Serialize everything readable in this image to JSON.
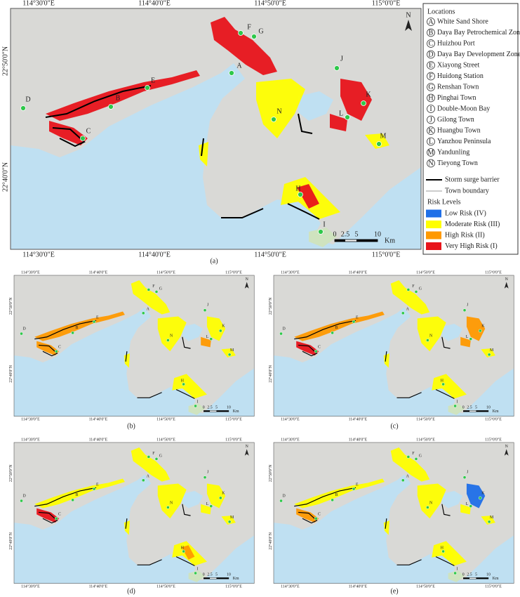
{
  "map": {
    "lon_labels": [
      "114°30'0\"E",
      "114°40'0\"E",
      "114°50'0\"E",
      "115°0'0\"E"
    ],
    "lat_labels": [
      "22°50'0\"N",
      "22°40'0\"N"
    ],
    "north": "N",
    "scale_labels": [
      "0",
      "2.5",
      "5",
      "10"
    ],
    "scale_unit": "Km"
  },
  "legend": {
    "locations_title": "Locations",
    "locations": [
      {
        "letter": "A",
        "name": "White Sand Shore"
      },
      {
        "letter": "B",
        "name": "Daya Bay Petrochemical Zone"
      },
      {
        "letter": "C",
        "name": "Huizhou Port"
      },
      {
        "letter": "D",
        "name": "Daya Bay Development Zone"
      },
      {
        "letter": "E",
        "name": "Xiayong Street"
      },
      {
        "letter": "F",
        "name": "Huidong Station"
      },
      {
        "letter": "G",
        "name": "Renshan Town"
      },
      {
        "letter": "H",
        "name": "Pinghai Town"
      },
      {
        "letter": "I",
        "name": "Double-Moon Bay"
      },
      {
        "letter": "J",
        "name": "Gilong Town"
      },
      {
        "letter": "K",
        "name": "Huangbu Town"
      },
      {
        "letter": "L",
        "name": "Yanzhou Peninsula"
      },
      {
        "letter": "M",
        "name": "Yandunling"
      },
      {
        "letter": "N",
        "name": "Tieyong Town"
      }
    ],
    "lines": [
      {
        "label": "Storm surge barrier",
        "color": "#000000"
      },
      {
        "label": "Town boundary",
        "color": "#9a9a9a"
      }
    ],
    "risk_title": "Risk Levels",
    "risk_levels": [
      {
        "label": "Low Risk (IV)",
        "color": "#1f6fe8"
      },
      {
        "label": "Moderate Risk (III)",
        "color": "#ffff00"
      },
      {
        "label": "High Risk (II)",
        "color": "#ff9900"
      },
      {
        "label": "Very High Risk (I)",
        "color": "#e8141b"
      }
    ]
  },
  "panels": [
    {
      "caption": "(a)"
    },
    {
      "caption": "(b)"
    },
    {
      "caption": "(c)"
    },
    {
      "caption": "(d)"
    },
    {
      "caption": "(e)"
    }
  ]
}
